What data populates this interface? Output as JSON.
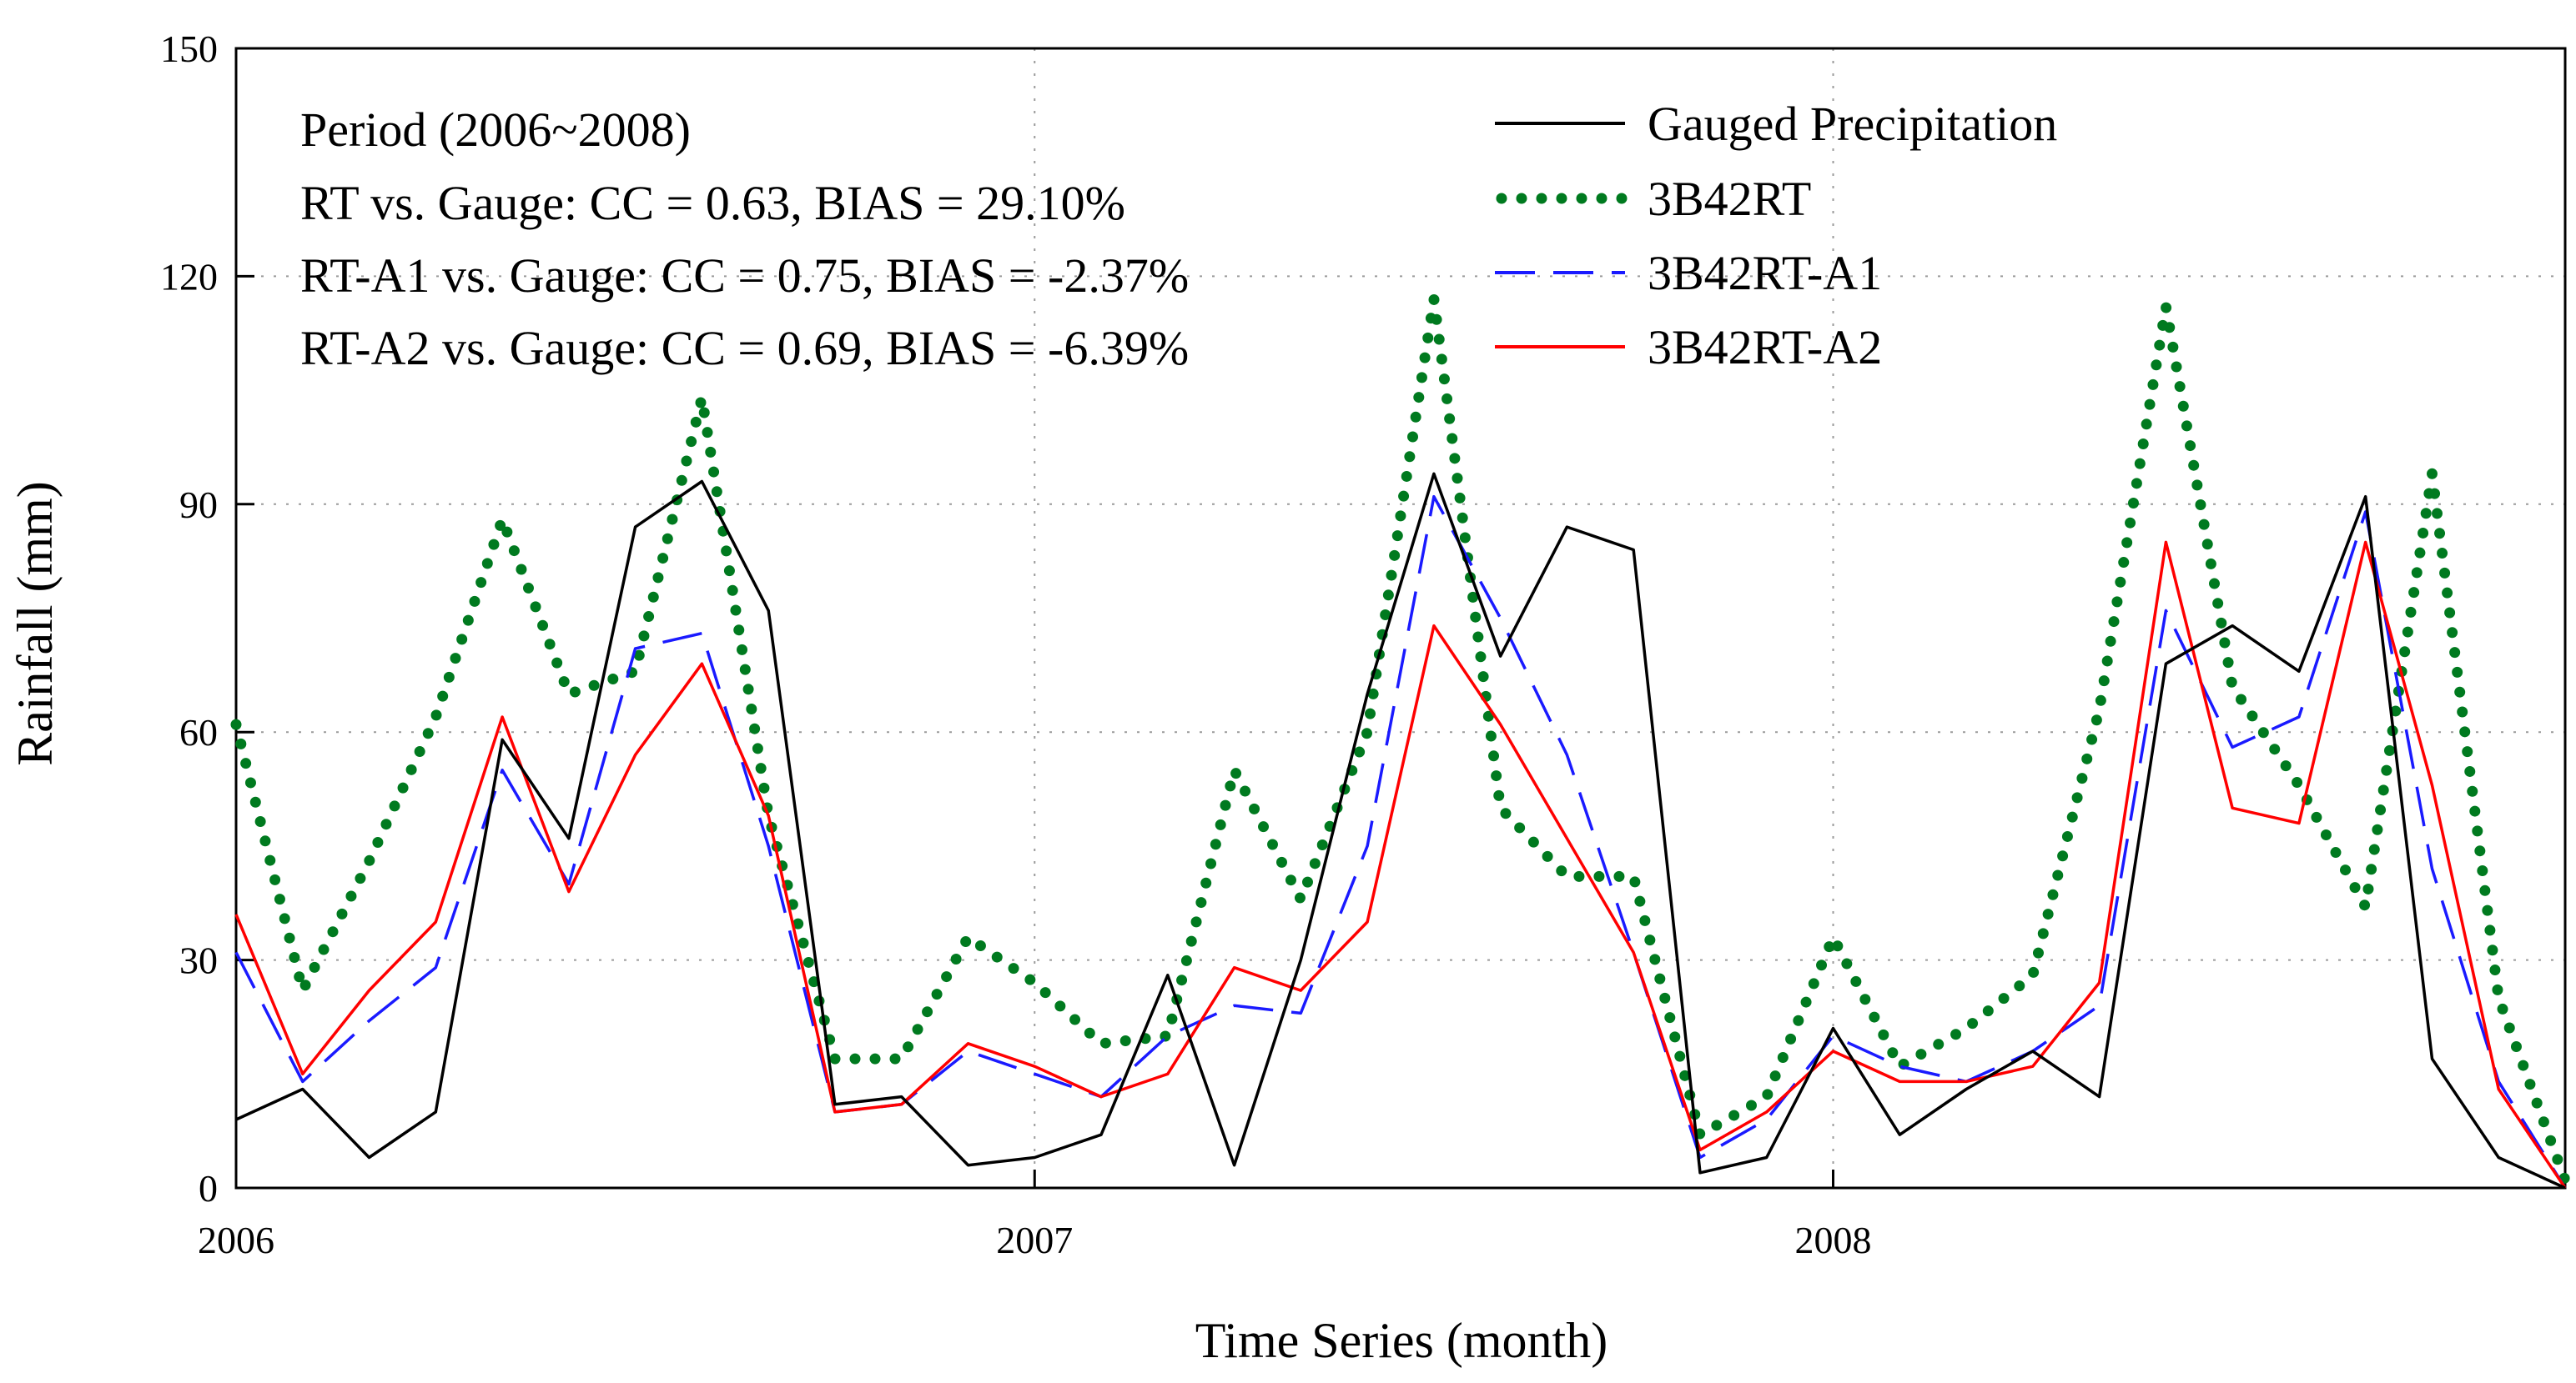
{
  "chart_data": {
    "type": "line",
    "title": "",
    "xlabel": "Time Series (month)",
    "ylabel": "Rainfall (mm)",
    "ylim": [
      0,
      150
    ],
    "yticks": [
      0,
      30,
      60,
      90,
      120,
      150
    ],
    "xticks": [
      {
        "month": 0,
        "label": "2006"
      },
      {
        "month": 12,
        "label": "2007"
      },
      {
        "month": 24,
        "label": "2008"
      }
    ],
    "xlim": [
      0,
      35
    ],
    "grid": true,
    "legend_position": "top-right",
    "annotations": [
      "Period (2006~2008)",
      "RT vs. Gauge:  CC = 0.63, BIAS = 29.10%",
      "RT-A1 vs. Gauge:  CC = 0.75,    BIAS = -2.37%",
      "RT-A2 vs. Gauge:  CC = 0.69,    BIAS = -6.39%"
    ],
    "x": [
      0,
      1,
      2,
      3,
      4,
      5,
      6,
      7,
      8,
      9,
      10,
      11,
      12,
      13,
      14,
      15,
      16,
      17,
      18,
      19,
      20,
      21,
      22,
      23,
      24,
      25,
      26,
      27,
      28,
      29,
      30,
      31,
      32,
      33,
      34,
      35
    ],
    "series": [
      {
        "name": "Gauged Precipitation",
        "color": "#000000",
        "style": "solid",
        "values": [
          9,
          13,
          4,
          10,
          59,
          46,
          87,
          93,
          76,
          11,
          12,
          3,
          4,
          7,
          28,
          3,
          30,
          65,
          94,
          70,
          87,
          84,
          2,
          4,
          21,
          7,
          13,
          18,
          12,
          69,
          74,
          68,
          91,
          17,
          4,
          0
        ]
      },
      {
        "name": "3B42RT",
        "color": "#007a1f",
        "style": "dotted",
        "values": [
          61,
          26,
          43,
          62,
          88,
          65,
          68,
          104,
          49,
          17,
          17,
          33,
          27,
          19,
          20,
          55,
          38,
          60,
          117,
          50,
          41,
          41,
          7,
          12,
          33,
          16,
          21,
          28,
          63,
          116,
          66,
          53,
          37,
          94,
          25,
          1
        ]
      },
      {
        "name": "3B42RT-A1",
        "color": "#1a1aff",
        "style": "dashed",
        "values": [
          31,
          14,
          22,
          29,
          55,
          40,
          71,
          73,
          45,
          10,
          11,
          18,
          15,
          12,
          20,
          24,
          23,
          45,
          91,
          75,
          57,
          31,
          4,
          9,
          20,
          16,
          14,
          18,
          24,
          76,
          58,
          62,
          89,
          42,
          14,
          0
        ]
      },
      {
        "name": "3B42RT-A2",
        "color": "#ff0000",
        "style": "solid",
        "values": [
          36,
          15,
          26,
          35,
          62,
          39,
          57,
          69,
          49,
          10,
          11,
          19,
          16,
          12,
          15,
          29,
          26,
          35,
          74,
          61,
          46,
          31,
          5,
          10,
          18,
          14,
          14,
          16,
          27,
          85,
          50,
          48,
          85,
          53,
          13,
          0
        ]
      }
    ]
  }
}
